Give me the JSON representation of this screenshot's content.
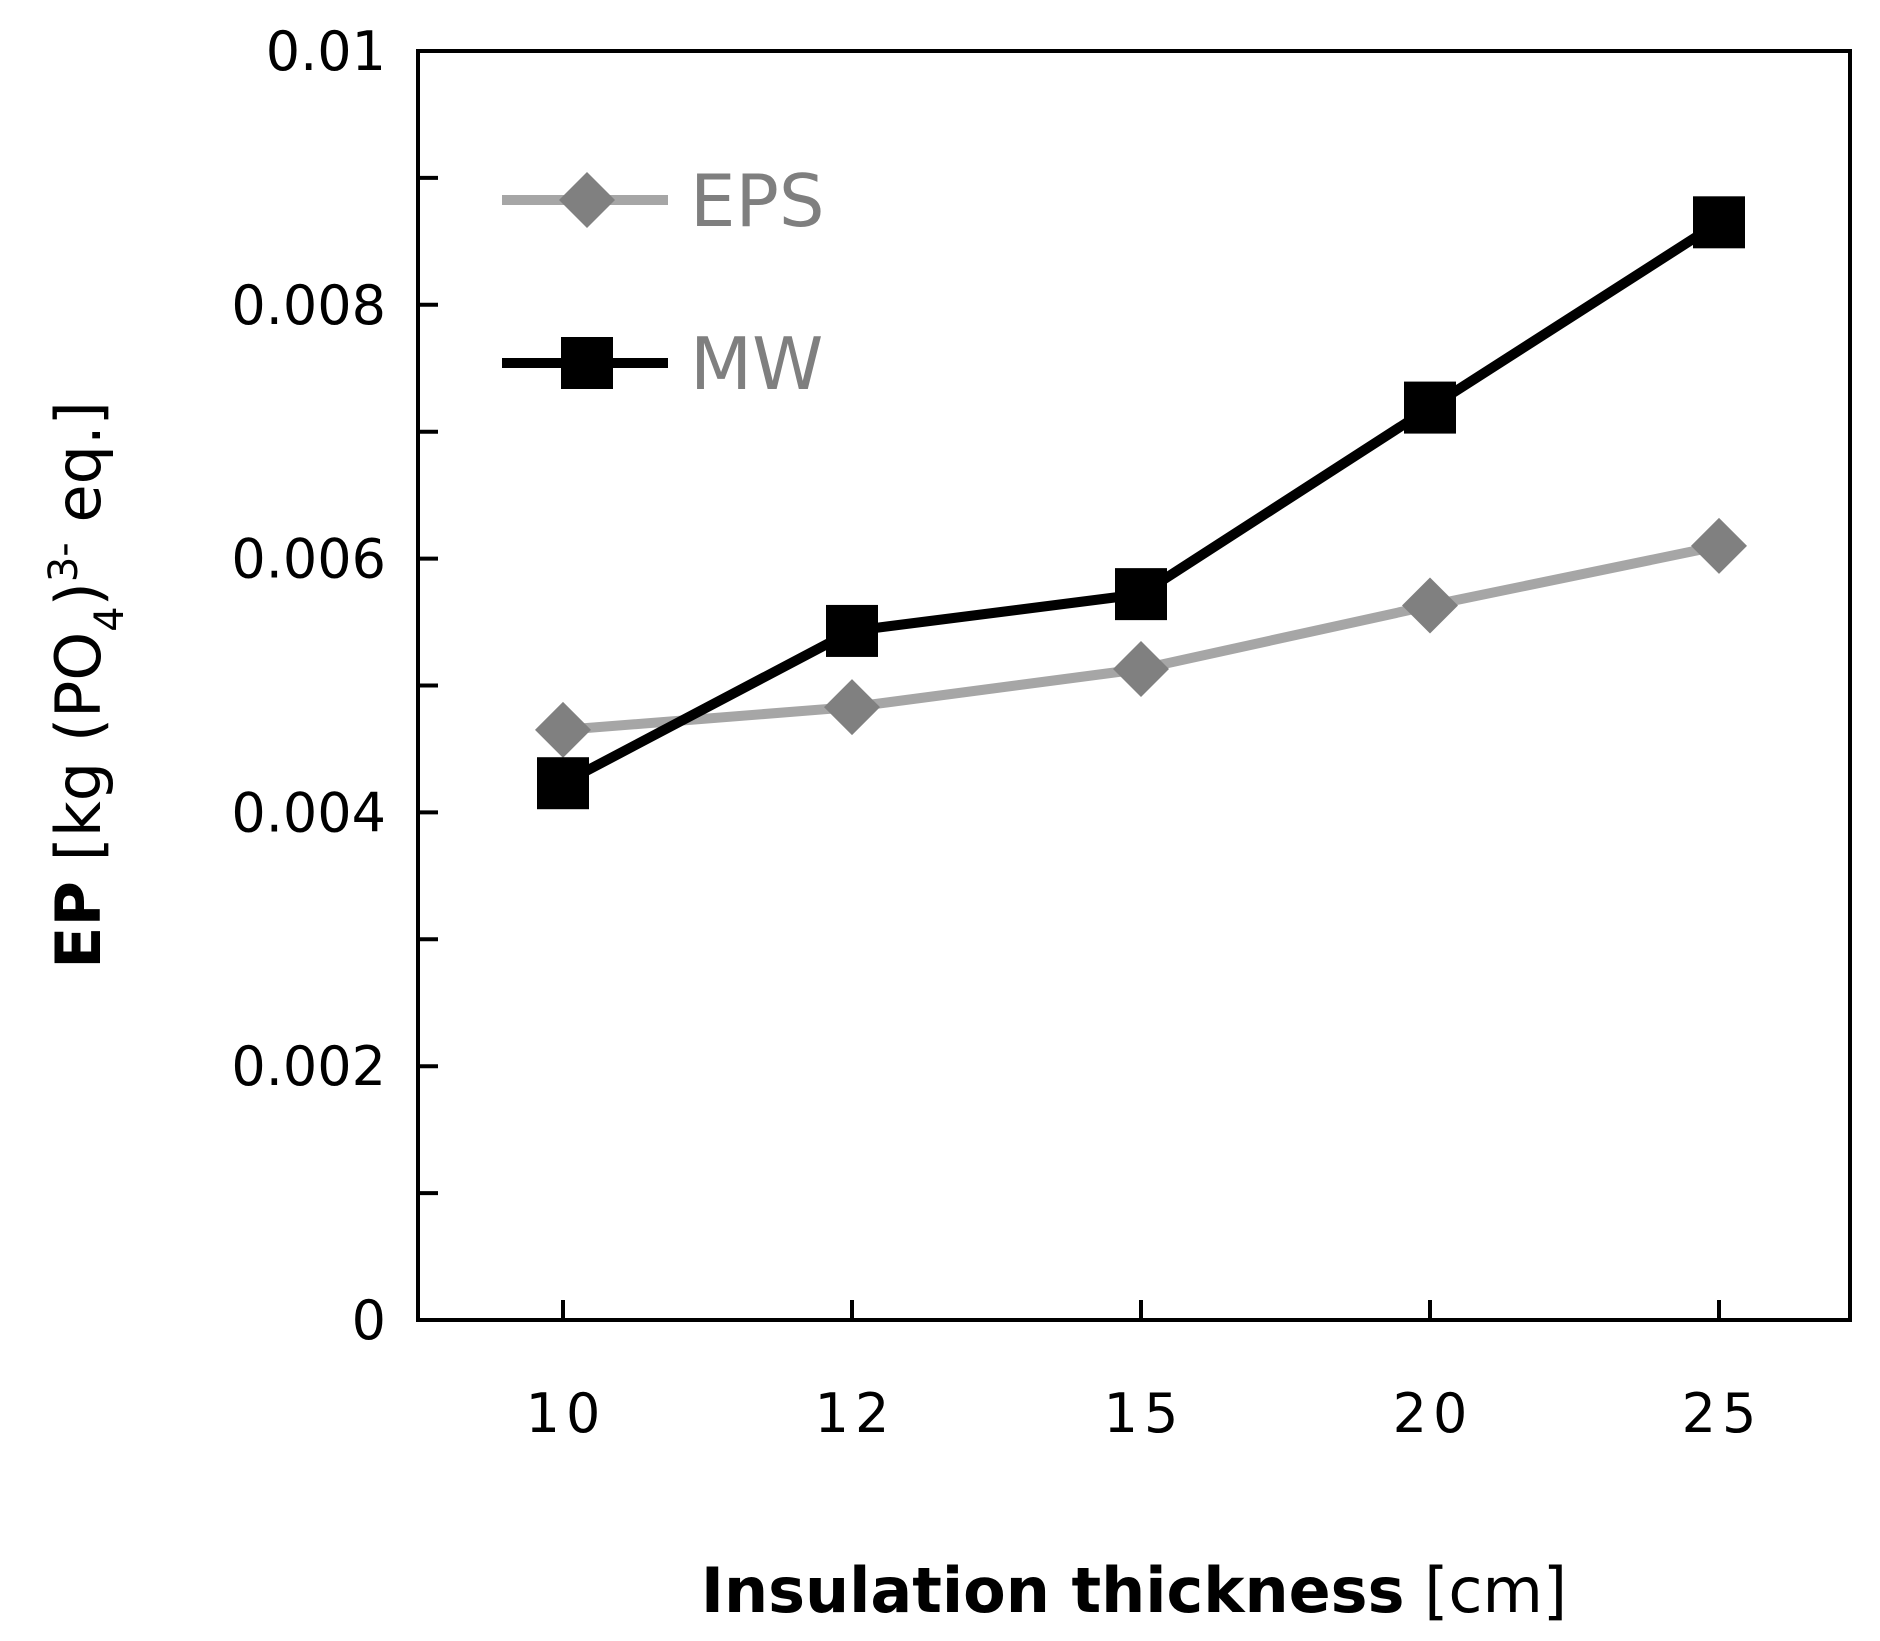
{
  "chart_data": {
    "type": "line",
    "categories": [
      "10",
      "12",
      "15",
      "20",
      "25"
    ],
    "series": [
      {
        "name": "EPS",
        "values": [
          0.00465,
          0.00483,
          0.00513,
          0.00563,
          0.0061
        ],
        "color": "#a6a6a6",
        "marker": "diamond",
        "marker_color": "#808080"
      },
      {
        "name": "MW",
        "values": [
          0.00423,
          0.00543,
          0.00572,
          0.00719,
          0.00865
        ],
        "color": "#000000",
        "marker": "square",
        "marker_color": "#000000"
      }
    ],
    "ylim": [
      0,
      0.01
    ],
    "yticks": [
      "0",
      "0.002",
      "0.004",
      "0.006",
      "0.008",
      "0.01"
    ],
    "ytick_values": [
      0,
      0.002,
      0.004,
      0.006,
      0.008,
      0.01
    ],
    "xlabel": {
      "bold": "Insulation thickness",
      "rest": " [cm]"
    },
    "ylabel": {
      "bold": "EP",
      "pre": " [kg (PO",
      "sub": "4",
      "mid": ")",
      "sup": "3-",
      "post": " eq.]"
    },
    "legend_position": "top-left",
    "grid": false
  }
}
